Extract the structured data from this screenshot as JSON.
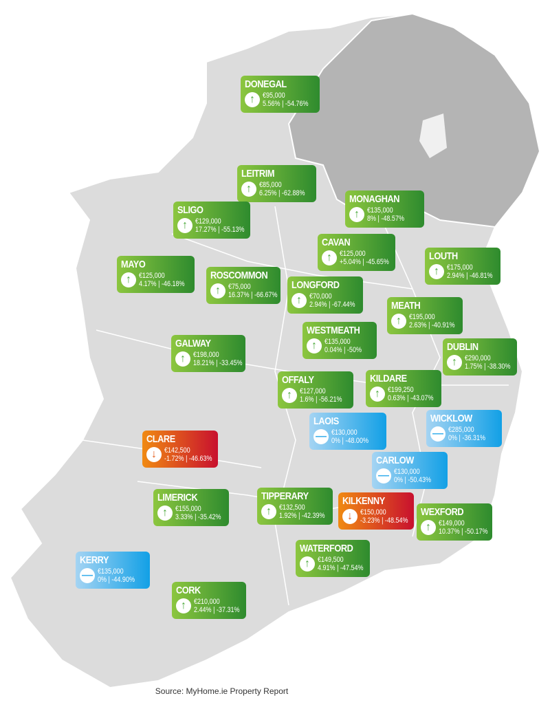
{
  "colors": {
    "increase": "#4aa83a",
    "no_change": "#12a0e6",
    "decrease": "#c8102e",
    "land": "#dcdcdc",
    "northern_ireland": "#b4b4b4"
  },
  "counties": [
    {
      "name": "DONEGAL",
      "price": "€95,000",
      "change": "5.56% | -54.76%",
      "trend": "up",
      "icon": "arrow-up-icon"
    },
    {
      "name": "LEITRIM",
      "price": "€85,000",
      "change": "6.25% | -62.88%",
      "trend": "up",
      "icon": "arrow-up-icon"
    },
    {
      "name": "SLIGO",
      "price": "€129,000",
      "change": "17.27% | -55.13%",
      "trend": "up",
      "icon": "arrow-up-icon"
    },
    {
      "name": "MAYO",
      "price": "€125,000",
      "change": "4.17% | -46.18%",
      "trend": "up",
      "icon": "arrow-up-icon"
    },
    {
      "name": "ROSCOMMON",
      "price": "€75,000",
      "change": "16.37% | -66.67%",
      "trend": "up",
      "icon": "arrow-up-icon"
    },
    {
      "name": "MONAGHAN",
      "price": "€135,000",
      "change": "8% | -48.57%",
      "trend": "up",
      "icon": "arrow-up-icon"
    },
    {
      "name": "CAVAN",
      "price": "€125,000",
      "change": "+5.04% | -45.65%",
      "trend": "up",
      "icon": "arrow-up-icon"
    },
    {
      "name": "LOUTH",
      "price": "€175,000",
      "change": "2.94% | -46.81%",
      "trend": "up",
      "icon": "arrow-up-icon"
    },
    {
      "name": "LONGFORD",
      "price": "€70,000",
      "change": "2.94% | -67.44%",
      "trend": "up",
      "icon": "arrow-up-icon"
    },
    {
      "name": "MEATH",
      "price": "€195,000",
      "change": "2.63% | -40.91%",
      "trend": "up",
      "icon": "arrow-up-icon"
    },
    {
      "name": "WESTMEATH",
      "price": "€135,000",
      "change": "0.04% | -50%",
      "trend": "up",
      "icon": "arrow-up-icon"
    },
    {
      "name": "DUBLIN",
      "price": "€290,000",
      "change": "1.75% | -38.30%",
      "trend": "up",
      "icon": "arrow-up-icon"
    },
    {
      "name": "GALWAY",
      "price": "€198,000",
      "change": "18.21% | -33.45%",
      "trend": "up",
      "icon": "arrow-up-icon"
    },
    {
      "name": "OFFALY",
      "price": "€127,000",
      "change": "1.6% | -56.21%",
      "trend": "up",
      "icon": "arrow-up-icon"
    },
    {
      "name": "KILDARE",
      "price": "€199,250",
      "change": "0.63% | -43.07%",
      "trend": "up",
      "icon": "arrow-up-icon"
    },
    {
      "name": "LAOIS",
      "price": "€130,000",
      "change": "0% | -48.00%",
      "trend": "flat",
      "icon": "minus-icon"
    },
    {
      "name": "WICKLOW",
      "price": "€285,000",
      "change": "0% | -36.31%",
      "trend": "flat",
      "icon": "minus-icon"
    },
    {
      "name": "CLARE",
      "price": "€142,500",
      "change": "-1.72% | -46.63%",
      "trend": "down",
      "icon": "arrow-down-icon"
    },
    {
      "name": "CARLOW",
      "price": "€130,000",
      "change": "0% | -50.43%",
      "trend": "flat",
      "icon": "minus-icon"
    },
    {
      "name": "LIMERICK",
      "price": "€155,000",
      "change": "3.33% | -35.42%",
      "trend": "up",
      "icon": "arrow-up-icon"
    },
    {
      "name": "TIPPERARY",
      "price": "€132,500",
      "change": "1.92% | -42.39%",
      "trend": "up",
      "icon": "arrow-up-icon"
    },
    {
      "name": "KILKENNY",
      "price": "€150,000",
      "change": "-3.23% | -48.54%",
      "trend": "down",
      "icon": "arrow-down-icon"
    },
    {
      "name": "WEXFORD",
      "price": "€149,000",
      "change": "10.37% | -50.17%",
      "trend": "up",
      "icon": "arrow-up-icon"
    },
    {
      "name": "WATERFORD",
      "price": "€149,500",
      "change": "4.91% | -47.54%",
      "trend": "up",
      "icon": "arrow-up-icon"
    },
    {
      "name": "KERRY",
      "price": "€135,000",
      "change": "0% | -44.90%",
      "trend": "flat",
      "icon": "minus-icon"
    },
    {
      "name": "CORK",
      "price": "€210,000",
      "change": "2.44% | -37.31%",
      "trend": "up",
      "icon": "arrow-up-icon"
    }
  ],
  "source": "Source: MyHome.ie Property Report"
}
